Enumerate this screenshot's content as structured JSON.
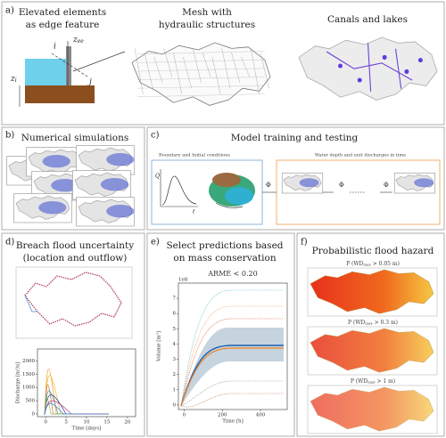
{
  "panel_a": {
    "label": "a)",
    "elevated_title": [
      "Elevated elements",
      "as edge feature"
    ],
    "mesh_title": [
      "Mesh with",
      "hydraulic structures"
    ],
    "canals_title": "Canals and lakes",
    "node_i": "i",
    "node_j": "j",
    "z_ee": {
      "base": "z",
      "sub": "ee"
    },
    "z_i": {
      "base": "z",
      "sub": "i"
    }
  },
  "panel_b": {
    "label": "b)",
    "title": "Numerical simulations"
  },
  "panel_c": {
    "label": "c)",
    "title": "Model training and testing",
    "boundary_caption": "Boundary and Initial conditions",
    "output_caption": "Water depth and unit discharges in time",
    "q_label": "Q",
    "t_label": "t",
    "phi": [
      "Φ",
      "Φ",
      "Φ"
    ]
  },
  "panel_d": {
    "label": "d)",
    "title": [
      "Breach flood uncertainty",
      "(location and outflow)"
    ],
    "chart": {
      "ylabel": "Discharge [m³/s]",
      "xlabel": "Time [days]",
      "yticks": [
        0,
        500,
        1000,
        1500,
        2000
      ],
      "ylim": [
        -100,
        2450
      ],
      "xticks": [
        0,
        5,
        10,
        15,
        20
      ],
      "xlim": [
        -2,
        22
      ]
    }
  },
  "panel_e": {
    "label": "e)",
    "title": [
      "Select predictions based",
      "on mass conservation"
    ],
    "chart": {
      "title": "ARME < 0.20",
      "scale": "1e8",
      "ylabel": "Volume [m³]",
      "xlabel": "Time [h]",
      "yticks": [
        0,
        1,
        2,
        3,
        4,
        5,
        6,
        7
      ],
      "ylim": [
        -0.3,
        8
      ],
      "xticks": [
        0,
        200,
        400
      ],
      "xlim": [
        -30,
        540
      ]
    }
  },
  "panel_f": {
    "label": "f)",
    "title": "Probabilistic flood hazard",
    "maps": [
      {
        "prefix": "P (WD",
        "sub": "max",
        "suffix": " > 0.05 m)"
      },
      {
        "prefix": "P (WD",
        "sub": "max",
        "suffix": " > 0.3 m)"
      },
      {
        "prefix": "P (WD",
        "sub": "max",
        "suffix": " > 1 m)"
      }
    ]
  }
}
